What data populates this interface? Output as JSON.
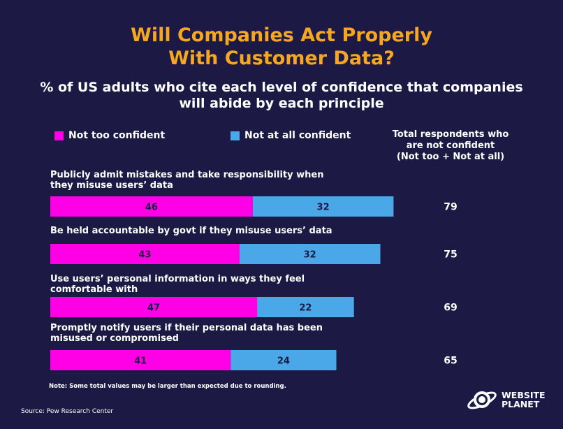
{
  "title": {
    "line1": "Will Companies Act Properly",
    "line2": "With Customer Data?"
  },
  "subtitle": {
    "line1": "% of US adults who cite each level of confidence that companies",
    "line2": "will abide by each principle"
  },
  "legend": [
    {
      "label": "Not too confident",
      "color": "#ff00e6"
    },
    {
      "label": "Not at all confident",
      "color": "#4aa8e8"
    }
  ],
  "total_header": {
    "line1": "Total respondents who",
    "line2": "are not confident",
    "line3": "(Not too + Not at all)"
  },
  "chart_data": {
    "type": "bar",
    "orientation": "horizontal-stacked",
    "categories": [
      [
        "Publicly admit mistakes and take responsibility when",
        "they misuse users’ data"
      ],
      [
        "Be held accountable by govt if they misuse users’ data"
      ],
      [
        "Use users’ personal information in ways they feel",
        "comfortable with"
      ],
      [
        "Promptly notify users if their personal data has been",
        "misused or compromised"
      ]
    ],
    "series": [
      {
        "name": "Not too confident",
        "values": [
          46,
          43,
          47,
          41
        ],
        "color": "#ff00e6"
      },
      {
        "name": "Not at all confident",
        "values": [
          32,
          32,
          22,
          24
        ],
        "color": "#4aa8e8"
      }
    ],
    "totals": [
      79,
      75,
      69,
      65
    ],
    "data_labels": true
  },
  "note": "Note: Some total values may be larger than expected due to rounding.",
  "source": "Source: Pew Research Center",
  "logo": {
    "line1": "WEBSITE",
    "line2": "PLANET"
  }
}
